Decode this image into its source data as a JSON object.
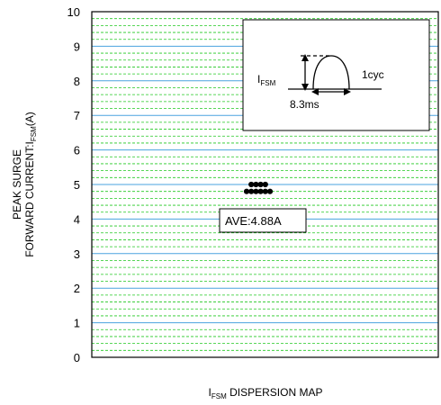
{
  "chart_data": {
    "type": "scatter",
    "xlabel": {
      "main": "I",
      "sub": "FSM",
      "rest": " DISPERSION MAP"
    },
    "ylabel": {
      "line1": "PEAK SURGE",
      "line2_pre": "FORWARD CURRENT:I",
      "line2_sub": "FSM",
      "line2_post": "(A)"
    },
    "ylim": [
      0,
      10
    ],
    "yticks": [
      "0",
      "1",
      "2",
      "3",
      "4",
      "5",
      "6",
      "7",
      "8",
      "9",
      "10"
    ],
    "grid": true,
    "points": [
      {
        "y": 5.0
      },
      {
        "y": 5.0
      },
      {
        "y": 5.0
      },
      {
        "y": 5.0
      },
      {
        "y": 4.8
      },
      {
        "y": 4.8
      },
      {
        "y": 4.8
      },
      {
        "y": 4.8
      },
      {
        "y": 4.8
      },
      {
        "y": 4.8
      }
    ],
    "annotation": "AVE:4.88A",
    "inset": {
      "ifsm_main": "I",
      "ifsm_sub": "FSM",
      "cycle": "1cyc",
      "time": "8.3ms"
    }
  }
}
